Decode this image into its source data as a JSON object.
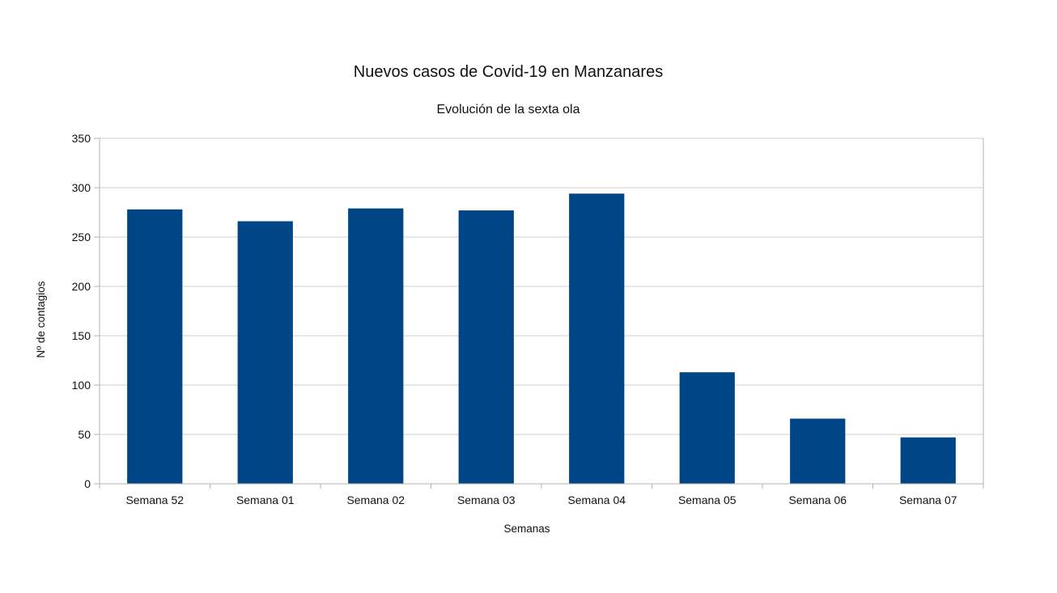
{
  "chart_data": {
    "type": "bar",
    "title": "Nuevos casos de Covid-19 en Manzanares",
    "subtitle": "Evolución de la sexta ola",
    "xlabel": "Semanas",
    "ylabel": "Nº de contagios",
    "categories": [
      "Semana 52",
      "Semana 01",
      "Semana 02",
      "Semana 03",
      "Semana 04",
      "Semana 05",
      "Semana 06",
      "Semana 07"
    ],
    "values": [
      278,
      266,
      279,
      277,
      294,
      113,
      66,
      47
    ],
    "ylim": [
      0,
      350
    ],
    "yticks": [
      0,
      50,
      100,
      150,
      200,
      250,
      300,
      350
    ],
    "grid": true,
    "legend": "none",
    "bar_color": "#004586"
  }
}
